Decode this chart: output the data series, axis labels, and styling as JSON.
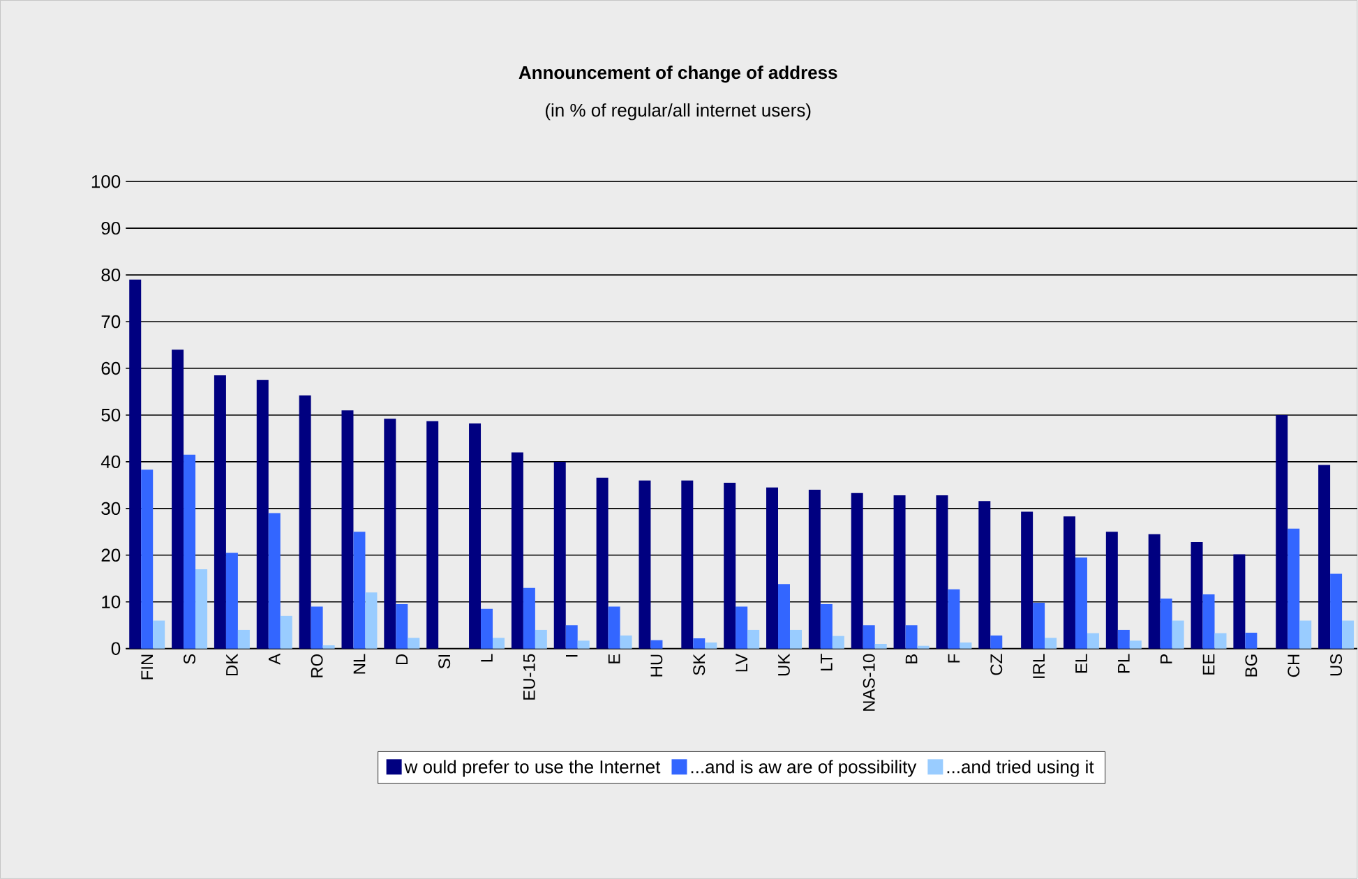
{
  "chart_data": {
    "type": "bar",
    "title": "Announcement of change of address",
    "subtitle": "(in % of regular/all internet users)",
    "categories": [
      "FIN",
      "S",
      "DK",
      "A",
      "RO",
      "NL",
      "D",
      "SI",
      "L",
      "EU-15",
      "I",
      "E",
      "HU",
      "SK",
      "LV",
      "UK",
      "LT",
      "NAS-10",
      "B",
      "F",
      "CZ",
      "IRL",
      "EL",
      "PL",
      "P",
      "EE",
      "BG",
      "CH",
      "US"
    ],
    "series": [
      {
        "name": "w ould prefer to use the Internet",
        "color": "#000080",
        "values": [
          79,
          64,
          58.5,
          57.5,
          54.2,
          51,
          49.2,
          48.7,
          48.2,
          42,
          40,
          36.6,
          36,
          36,
          35.5,
          34.5,
          34,
          33.3,
          32.8,
          32.8,
          31.6,
          29.3,
          28.3,
          25,
          24.5,
          22.8,
          20.2,
          50,
          39.3
        ]
      },
      {
        "name": "...and is aw are of possibility",
        "color": "#3366ff",
        "values": [
          38.3,
          41.5,
          20.5,
          29,
          9,
          25,
          9.5,
          0,
          8.5,
          13,
          5,
          9,
          1.8,
          2.2,
          9,
          13.8,
          9.5,
          5,
          5,
          12.7,
          2.8,
          9.8,
          19.5,
          4,
          10.7,
          11.6,
          3.4,
          25.7,
          16
        ]
      },
      {
        "name": "...and tried using it",
        "color": "#99ccff",
        "values": [
          6,
          17,
          4,
          7,
          0.7,
          12,
          2.3,
          0,
          2.3,
          4,
          1.7,
          2.8,
          0,
          1.3,
          4,
          4,
          2.7,
          1,
          0.6,
          1.3,
          0,
          2.3,
          3.3,
          1.7,
          6,
          3.3,
          0,
          6,
          6
        ]
      }
    ],
    "ylim": [
      0,
      100
    ],
    "yticks": [
      0,
      10,
      20,
      30,
      40,
      50,
      60,
      70,
      80,
      90,
      100
    ],
    "grid": "y",
    "legend": "bottom"
  }
}
